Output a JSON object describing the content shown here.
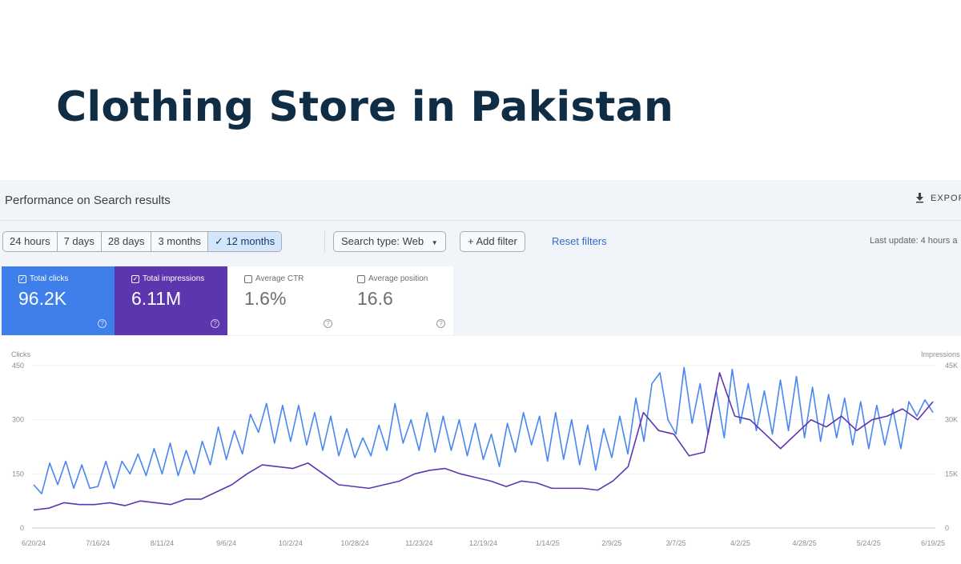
{
  "title": "Clothing Store in Pakistan",
  "header": {
    "title": "Performance on Search results",
    "export_label": "EXPOR",
    "export_icon": "download-icon"
  },
  "filters": {
    "ranges": [
      "24 hours",
      "7 days",
      "28 days",
      "3 months",
      "✓ 12 months"
    ],
    "selected_range": "12 months",
    "search_type": "Search type: Web",
    "add_filter": "+ Add filter",
    "reset": "Reset filters",
    "last_update": "Last update: 4 hours a"
  },
  "metrics": [
    {
      "label": "Total clicks",
      "value": "96.2K",
      "checked": true,
      "color": "#3f7fe9"
    },
    {
      "label": "Total impressions",
      "value": "6.11M",
      "checked": true,
      "color": "#5c36ae"
    },
    {
      "label": "Average CTR",
      "value": "1.6%",
      "checked": false
    },
    {
      "label": "Average position",
      "value": "16.6",
      "checked": false
    }
  ],
  "chart_data": {
    "type": "line",
    "x_range": [
      "6/20/24",
      "6/19/25"
    ],
    "x_ticks": [
      "6/20/24",
      "7/16/24",
      "8/11/24",
      "9/6/24",
      "10/2/24",
      "10/28/24",
      "11/23/24",
      "12/19/24",
      "1/14/25",
      "2/9/25",
      "3/7/25",
      "4/2/25",
      "4/28/25",
      "5/24/25",
      "6/19/25"
    ],
    "y_left": {
      "label": "Clicks",
      "ticks": [
        "0",
        "150",
        "300",
        "450"
      ],
      "range": [
        0,
        450
      ]
    },
    "y_right": {
      "label": "Impressions",
      "ticks": [
        "0",
        "15K",
        "30K",
        "45K"
      ],
      "range": [
        0,
        45000
      ]
    },
    "grid": true,
    "series": [
      {
        "name": "Clicks",
        "axis": "left",
        "color": "#4a86f0",
        "values": [
          120,
          95,
          180,
          120,
          185,
          110,
          175,
          110,
          115,
          185,
          110,
          185,
          150,
          205,
          145,
          220,
          150,
          235,
          145,
          215,
          150,
          240,
          175,
          280,
          190,
          270,
          205,
          315,
          265,
          345,
          235,
          340,
          240,
          340,
          230,
          320,
          215,
          310,
          200,
          275,
          195,
          250,
          200,
          285,
          215,
          345,
          235,
          300,
          215,
          320,
          210,
          310,
          215,
          300,
          200,
          290,
          190,
          260,
          170,
          290,
          210,
          320,
          230,
          310,
          185,
          320,
          190,
          300,
          175,
          285,
          160,
          275,
          195,
          310,
          205,
          360,
          240,
          400,
          430,
          300,
          260,
          445,
          290,
          400,
          260,
          380,
          250,
          440,
          290,
          400,
          270,
          380,
          260,
          410,
          270,
          420,
          250,
          390,
          240,
          370,
          250,
          360,
          230,
          350,
          220,
          340,
          230,
          330,
          220,
          350,
          310,
          355,
          320
        ]
      },
      {
        "name": "Impressions",
        "axis": "right",
        "color": "#5e35b1",
        "values": [
          5000,
          5500,
          7000,
          6500,
          6500,
          7000,
          6200,
          7500,
          7000,
          6500,
          8000,
          8000,
          10000,
          12000,
          15000,
          17500,
          17000,
          16500,
          18000,
          15000,
          12000,
          11500,
          11000,
          12000,
          13000,
          15000,
          16000,
          16500,
          15000,
          14000,
          13000,
          11500,
          13000,
          12500,
          11000,
          11000,
          11000,
          10500,
          13000,
          17000,
          32000,
          27000,
          26000,
          20000,
          21000,
          43000,
          31000,
          30000,
          26000,
          22000,
          26000,
          30000,
          28000,
          31000,
          27000,
          30000,
          31000,
          33000,
          30000,
          35000
        ]
      }
    ]
  }
}
